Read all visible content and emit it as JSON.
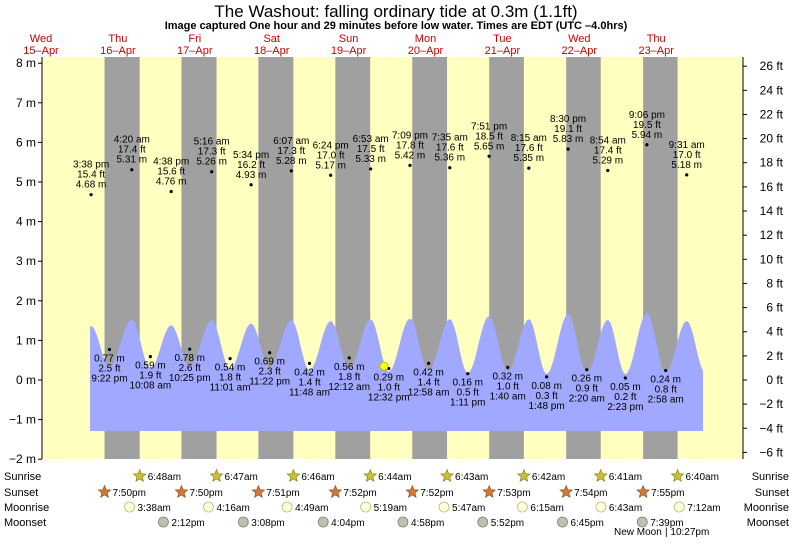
{
  "title": "The Washout: falling  ordinary tide at 0.3m (1.1ft)",
  "subtitle": "Image captured One hour and 29 minutes before low water. Times are EDT (UTC –4.0hrs)",
  "days": [
    {
      "dow": "Wed",
      "date": "15–Apr"
    },
    {
      "dow": "Thu",
      "date": "16–Apr"
    },
    {
      "dow": "Fri",
      "date": "17–Apr"
    },
    {
      "dow": "Sat",
      "date": "18–Apr"
    },
    {
      "dow": "Sun",
      "date": "19–Apr"
    },
    {
      "dow": "Mon",
      "date": "20–Apr"
    },
    {
      "dow": "Tue",
      "date": "21–Apr"
    },
    {
      "dow": "Wed",
      "date": "22–Apr"
    },
    {
      "dow": "Thu",
      "date": "23–Apr"
    }
  ],
  "colors": {
    "day": "#ffffc0",
    "night": "#a0a0a0",
    "water": "#a0a8ff",
    "heading": "#cc0000",
    "now_marker": "#ffff00"
  },
  "chart_data": {
    "type": "area",
    "y_left": {
      "unit": "m",
      "range": [
        -2.2,
        8.2
      ],
      "ticks": [
        8,
        7,
        6,
        5,
        4,
        3,
        2,
        1,
        0,
        -1,
        -2
      ],
      "labels": [
        "8 m",
        "7 m",
        "6 m",
        "5 m",
        "4 m",
        "3 m",
        "2 m",
        "1 m",
        "0 m",
        "−1 m",
        "−2 m"
      ]
    },
    "y_right": {
      "unit": "ft",
      "ticks": [
        26,
        24,
        22,
        20,
        18,
        16,
        14,
        12,
        10,
        8,
        6,
        4,
        2,
        0,
        -2,
        -4,
        -6
      ],
      "labels": [
        "26 ft",
        "24 ft",
        "22 ft",
        "20 ft",
        "18 ft",
        "16 ft",
        "14 ft",
        "12 ft",
        "10 ft",
        "8 ft",
        "6 ft",
        "4 ft",
        "2 ft",
        "0 ft",
        "−2 ft",
        "−4 ft",
        "−6 ft"
      ]
    },
    "high_tides": [
      {
        "time": "3:38 pm",
        "ft": "15.4 ft",
        "m": "4.68 m",
        "value": 4.68,
        "day": 0
      },
      {
        "time": "4:20 am",
        "ft": "17.4 ft",
        "m": "5.31 m",
        "value": 5.31,
        "day": 1
      },
      {
        "time": "4:38 pm",
        "ft": "15.6 ft",
        "m": "4.76 m",
        "value": 4.76,
        "day": 1
      },
      {
        "time": "5:16 am",
        "ft": "17.3 ft",
        "m": "5.26 m",
        "value": 5.26,
        "day": 2
      },
      {
        "time": "5:34 pm",
        "ft": "16.2 ft",
        "m": "4.93 m",
        "value": 4.93,
        "day": 2
      },
      {
        "time": "6:07 am",
        "ft": "17.3 ft",
        "m": "5.28 m",
        "value": 5.28,
        "day": 3
      },
      {
        "time": "6:24 pm",
        "ft": "17.0 ft",
        "m": "5.17 m",
        "value": 5.17,
        "day": 3
      },
      {
        "time": "6:53 am",
        "ft": "17.5 ft",
        "m": "5.33 m",
        "value": 5.33,
        "day": 4
      },
      {
        "time": "7:09 pm",
        "ft": "17.8 ft",
        "m": "5.42 m",
        "value": 5.42,
        "day": 4
      },
      {
        "time": "7:35 am",
        "ft": "17.6 ft",
        "m": "5.36 m",
        "value": 5.36,
        "day": 5
      },
      {
        "time": "7:51 pm",
        "ft": "18.5 ft",
        "m": "5.65 m",
        "value": 5.65,
        "day": 5
      },
      {
        "time": "8:15 am",
        "ft": "17.6 ft",
        "m": "5.35 m",
        "value": 5.35,
        "day": 6
      },
      {
        "time": "8:30 pm",
        "ft": "19.1 ft",
        "m": "5.83 m",
        "value": 5.83,
        "day": 6
      },
      {
        "time": "8:54 am",
        "ft": "17.4 ft",
        "m": "5.29 m",
        "value": 5.29,
        "day": 7
      },
      {
        "time": "9:06 pm",
        "ft": "19.5 ft",
        "m": "5.94 m",
        "value": 5.94,
        "day": 7
      },
      {
        "time": "9:31 am",
        "ft": "17.0 ft",
        "m": "5.18 m",
        "value": 5.18,
        "day": 8
      }
    ],
    "low_tides": [
      {
        "m": "0.77 m",
        "ft": "2.5 ft",
        "time": "9:22 pm",
        "value": 0.77,
        "day": 0
      },
      {
        "m": "0.59 m",
        "ft": "1.9 ft",
        "time": "10:08 am",
        "value": 0.59,
        "day": 1
      },
      {
        "m": "0.78 m",
        "ft": "2.6 ft",
        "time": "10:25 pm",
        "value": 0.78,
        "day": 1
      },
      {
        "m": "0.54 m",
        "ft": "1.8 ft",
        "time": "11:01 am",
        "value": 0.54,
        "day": 2
      },
      {
        "m": "0.69 m",
        "ft": "2.3 ft",
        "time": "11:22 pm",
        "value": 0.69,
        "day": 2
      },
      {
        "m": "0.42 m",
        "ft": "1.4 ft",
        "time": "11:48 am",
        "value": 0.42,
        "day": 3
      },
      {
        "m": "0.56 m",
        "ft": "1.8 ft",
        "time": "12:12 am",
        "value": 0.56,
        "day": 4
      },
      {
        "m": "0.29 m",
        "ft": "1.0 ft",
        "time": "12:32 pm",
        "value": 0.29,
        "day": 4
      },
      {
        "m": "0.42 m",
        "ft": "1.4 ft",
        "time": "12:58 am",
        "value": 0.42,
        "day": 5
      },
      {
        "m": "0.16 m",
        "ft": "0.5 ft",
        "time": "1:11 pm",
        "value": 0.16,
        "day": 5
      },
      {
        "m": "0.32 m",
        "ft": "1.0 ft",
        "time": "1:40 am",
        "value": 0.32,
        "day": 6
      },
      {
        "m": "0.08 m",
        "ft": "0.3 ft",
        "time": "1:48 pm",
        "value": 0.08,
        "day": 6
      },
      {
        "m": "0.26 m",
        "ft": "0.9 ft",
        "time": "2:20 am",
        "value": 0.26,
        "day": 7
      },
      {
        "m": "0.05 m",
        "ft": "0.2 ft",
        "time": "2:23 pm",
        "value": 0.05,
        "day": 7
      },
      {
        "m": "0.24 m",
        "ft": "0.8 ft",
        "time": "2:58 am",
        "value": 0.24,
        "day": 8
      }
    ],
    "now": {
      "time": "11:03 am",
      "day": 4,
      "value": 0.35
    },
    "sunrise": [
      "6:48am",
      "6:47am",
      "6:46am",
      "6:44am",
      "6:43am",
      "6:42am",
      "6:41am",
      "6:40am"
    ],
    "sunset": [
      "7:50pm",
      "7:50pm",
      "7:51pm",
      "7:52pm",
      "7:52pm",
      "7:53pm",
      "7:54pm",
      "7:55pm"
    ],
    "moonrise": [
      "3:38am",
      "4:16am",
      "4:49am",
      "5:19am",
      "5:47am",
      "6:15am",
      "6:43am",
      "7:12am"
    ],
    "moonset": [
      "2:12pm",
      "3:08pm",
      "4:04pm",
      "4:58pm",
      "5:52pm",
      "6:45pm",
      "7:39pm"
    ],
    "row_labels": {
      "sunrise": "Sunrise",
      "sunset": "Sunset",
      "moonrise": "Moonrise",
      "moonset": "Moonset"
    },
    "new_moon": "New Moon",
    "new_moon_time": "10:27pm"
  }
}
